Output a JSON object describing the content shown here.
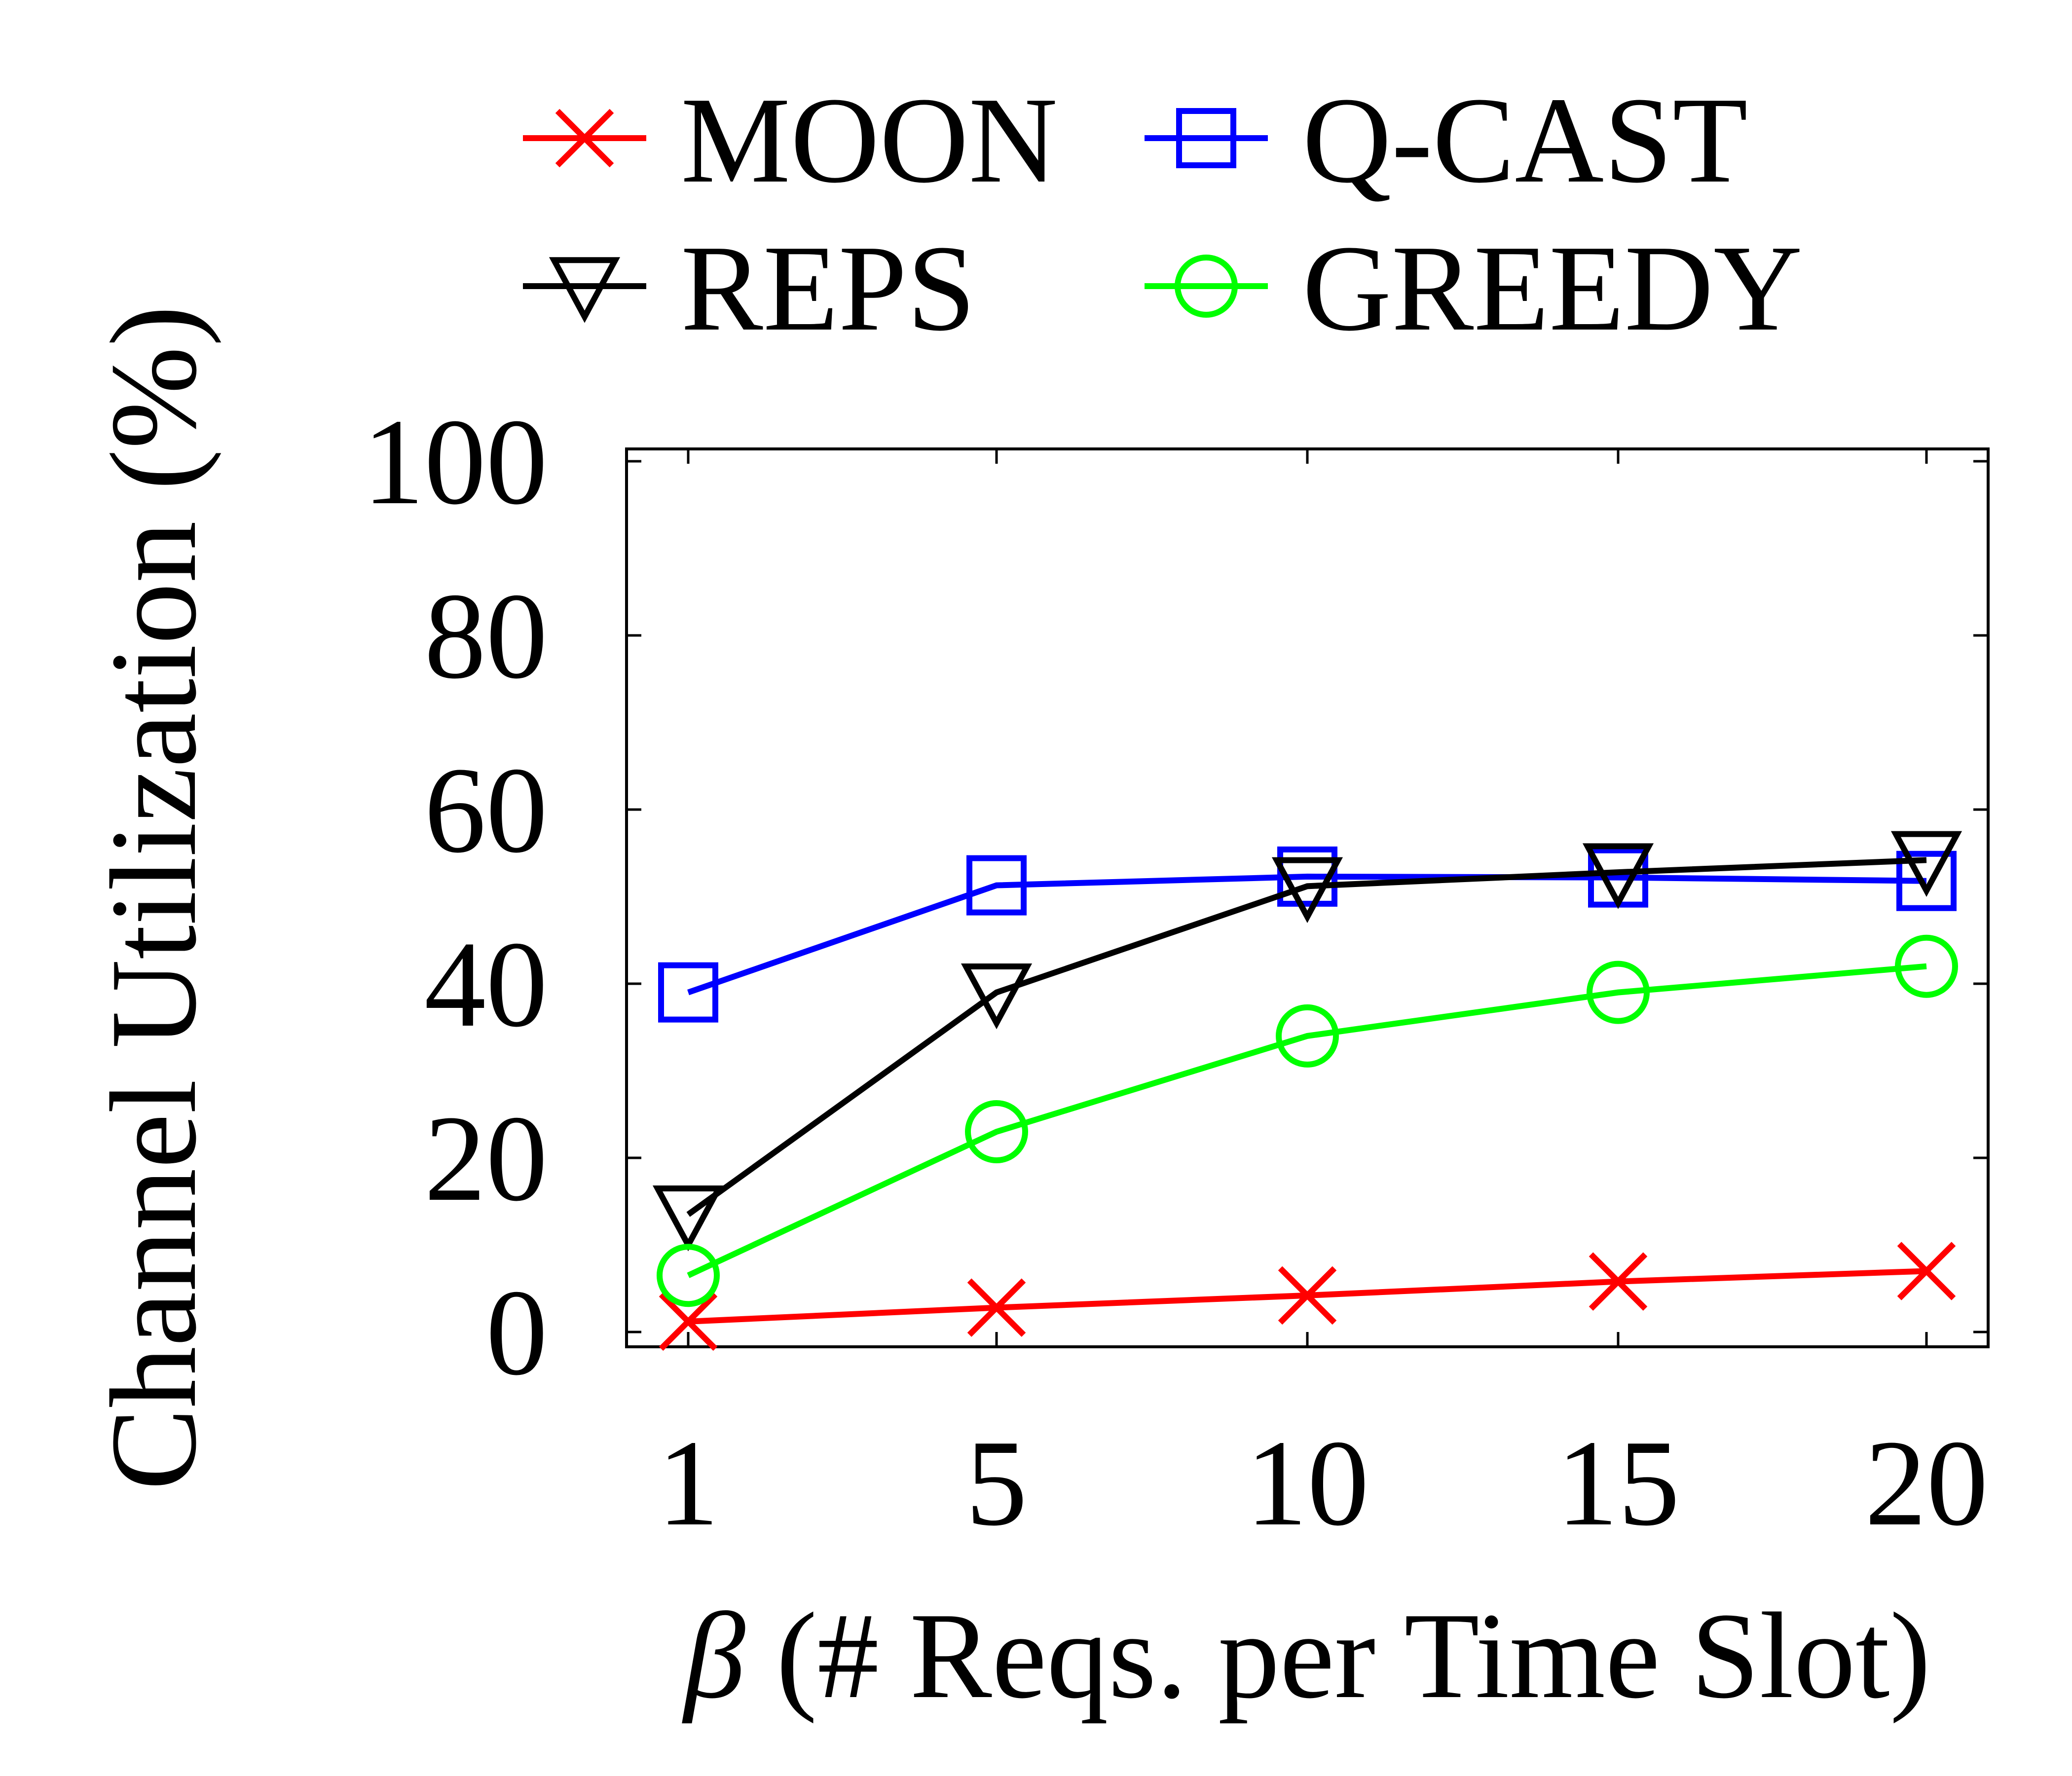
{
  "chart_data": {
    "type": "line",
    "x": [
      1,
      5,
      10,
      15,
      20
    ],
    "x_tick_labels": [
      "1",
      "5",
      "10",
      "15",
      "20"
    ],
    "xlabel_symbol": "β",
    "xlabel_text": " (# Reqs. per Time Slot)",
    "ylabel": "Channel Utilization (%)",
    "ylim": [
      0,
      100
    ],
    "y_ticks": [
      0,
      20,
      40,
      60,
      80,
      100
    ],
    "y_tick_labels": [
      "0",
      "20",
      "40",
      "60",
      "80",
      "100"
    ],
    "grid": false,
    "legend_position": "top",
    "series": [
      {
        "name": "MOON",
        "color": "#ff0000",
        "marker": "x",
        "values": [
          1.2,
          2.8,
          4.2,
          5.8,
          7.0
        ]
      },
      {
        "name": "Q-CAST",
        "color": "#0000ff",
        "marker": "square",
        "values": [
          39,
          51.3,
          52.3,
          52.2,
          51.8
        ]
      },
      {
        "name": "REPS",
        "color": "#000000",
        "marker": "triangle-down",
        "values": [
          13.5,
          39,
          51.2,
          52.8,
          54.2
        ]
      },
      {
        "name": "GREEDY",
        "color": "#00ff00",
        "marker": "circle",
        "values": [
          6.5,
          23,
          34,
          39,
          42
        ]
      }
    ]
  }
}
